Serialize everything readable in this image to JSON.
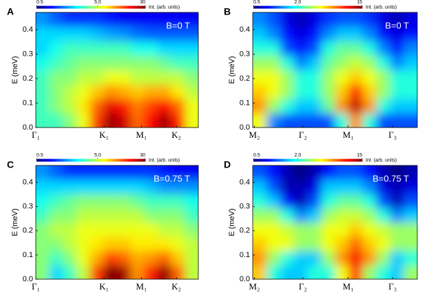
{
  "chart_data": [
    {
      "type": "heatmap",
      "panel": "A",
      "annotation": "B=0 T",
      "ylabel": "E (meV)",
      "xlim": [
        0,
        1
      ],
      "xticks": [
        {
          "value": 0,
          "label": "Γ₁"
        },
        {
          "value": 0.42,
          "label": "K₁"
        },
        {
          "value": 0.65,
          "label": "M₁"
        },
        {
          "value": 0.865,
          "label": "K₂"
        }
      ],
      "ylim": [
        0,
        0.47
      ],
      "yticks": [
        {
          "value": 0,
          "label": "0.0"
        },
        0.1,
        0.2,
        0.3,
        0.4
      ],
      "colorbar": {
        "label": "Int. (arb. units)",
        "lim": [
          0.5,
          30
        ],
        "ticks": [
          0.5,
          {
            "value": 5,
            "label": "5.0"
          },
          30
        ],
        "scale": "log",
        "colormap": "jet"
      },
      "z": [
        [
          3,
          3,
          4,
          6,
          14,
          26,
          22,
          12,
          18,
          26,
          16,
          6
        ],
        [
          3,
          4,
          5,
          7,
          12,
          20,
          16,
          11,
          14,
          18,
          12,
          6
        ],
        [
          3,
          4,
          5,
          6,
          8,
          10,
          9,
          8,
          9,
          9,
          7,
          5
        ],
        [
          3,
          4,
          4,
          5,
          5,
          6,
          6,
          5,
          5,
          5,
          5,
          4
        ],
        [
          2.5,
          3,
          3.5,
          4,
          4,
          4,
          4,
          4,
          4,
          3.5,
          3,
          3
        ],
        [
          2,
          2.5,
          3,
          3,
          3,
          3,
          3,
          2.5,
          2.5,
          2,
          2,
          2
        ],
        [
          2,
          2,
          2,
          2,
          1.8,
          1.6,
          1.5,
          1.3,
          1.2,
          1.2,
          1.2,
          1.2
        ],
        [
          1.5,
          1.2,
          1,
          1,
          1,
          0.9,
          0.8,
          0.8,
          0.8,
          0.8,
          0.8,
          0.8
        ]
      ]
    },
    {
      "type": "heatmap",
      "panel": "B",
      "annotation": "B=0 T",
      "ylabel": "E (meV)",
      "xlim": [
        0,
        1
      ],
      "xticks": [
        {
          "value": 0.01,
          "label": "M₂"
        },
        {
          "value": 0.305,
          "label": "Γ₂"
        },
        {
          "value": 0.58,
          "label": "M₁"
        },
        {
          "value": 0.85,
          "label": "Γ₃"
        }
      ],
      "ylim": [
        0,
        0.47
      ],
      "yticks": [
        {
          "value": 0,
          "label": "0.0"
        },
        0.1,
        0.2,
        0.3,
        0.4
      ],
      "colorbar": {
        "label": "Int. (arb. units)",
        "lim": [
          0.5,
          15
        ],
        "ticks": [
          0.5,
          {
            "value": 2,
            "label": "2.0"
          },
          15
        ],
        "scale": "log",
        "colormap": "jet"
      },
      "z": [
        [
          4,
          1.2,
          1,
          1,
          1,
          1,
          2,
          6,
          2,
          1,
          1,
          1
        ],
        [
          6,
          3,
          2,
          1.5,
          1.5,
          2.5,
          6,
          12,
          6,
          2,
          1.5,
          1.5
        ],
        [
          5,
          4,
          3,
          2,
          2,
          3,
          5,
          9,
          5,
          3,
          2,
          2
        ],
        [
          4,
          4,
          3,
          2,
          2,
          3,
          4,
          5,
          4,
          3,
          2,
          2
        ],
        [
          3,
          3,
          2,
          1.2,
          1.5,
          2.5,
          3,
          3.5,
          3,
          2,
          1.2,
          1.5
        ],
        [
          2,
          2,
          1,
          0.8,
          1,
          2,
          2.5,
          2.5,
          2,
          1.2,
          0.8,
          1.2
        ],
        [
          1.5,
          1.2,
          0.8,
          0.7,
          0.8,
          1.2,
          1.5,
          1.5,
          1.2,
          0.8,
          0.7,
          0.8
        ],
        [
          1.2,
          1,
          0.7,
          0.6,
          0.7,
          0.9,
          1,
          1,
          0.9,
          0.7,
          0.6,
          0.7
        ]
      ]
    },
    {
      "type": "heatmap",
      "panel": "C",
      "annotation": "B=0.75 T",
      "ylabel": "E (meV)",
      "xlim": [
        0,
        1
      ],
      "xticks": [
        {
          "value": 0,
          "label": "Γ₁"
        },
        {
          "value": 0.42,
          "label": "K₁"
        },
        {
          "value": 0.65,
          "label": "M₁"
        },
        {
          "value": 0.865,
          "label": "K₂"
        }
      ],
      "ylim": [
        0,
        0.47
      ],
      "yticks": [
        {
          "value": 0,
          "label": "0.0"
        },
        0.1,
        0.2,
        0.3,
        0.4
      ],
      "colorbar": {
        "label": "Int. (arb. units)",
        "lim": [
          0.5,
          30
        ],
        "ticks": [
          0.5,
          {
            "value": 5,
            "label": "5.0"
          },
          30
        ],
        "scale": "log",
        "colormap": "jet"
      },
      "z": [
        [
          4,
          2,
          3,
          5,
          14,
          30,
          26,
          10,
          16,
          28,
          12,
          5
        ],
        [
          4,
          3,
          4,
          6,
          9,
          14,
          12,
          9,
          10,
          12,
          8,
          5
        ],
        [
          4,
          4,
          5,
          6,
          7,
          8,
          8,
          7,
          7,
          7,
          6,
          5
        ],
        [
          4,
          5,
          5,
          6,
          6,
          6,
          6,
          6,
          6,
          5,
          5,
          4
        ],
        [
          3,
          4,
          4,
          5,
          5,
          5,
          5,
          5,
          4,
          4,
          4,
          3
        ],
        [
          2.5,
          3,
          3.5,
          4,
          4,
          4,
          4,
          3.5,
          3,
          3,
          3,
          2.5
        ],
        [
          2,
          2,
          2,
          2,
          2,
          2,
          2,
          2,
          1.8,
          1.5,
          1.5,
          1.5
        ],
        [
          1.5,
          1.2,
          1,
          1,
          1,
          1,
          1,
          1,
          1,
          0.9,
          0.8,
          0.8
        ]
      ]
    },
    {
      "type": "heatmap",
      "panel": "D",
      "annotation": "B=0.75 T",
      "ylabel": "E (meV)",
      "xlim": [
        0,
        1
      ],
      "xticks": [
        {
          "value": 0.01,
          "label": "M₂"
        },
        {
          "value": 0.305,
          "label": "Γ₂"
        },
        {
          "value": 0.58,
          "label": "M₁"
        },
        {
          "value": 0.85,
          "label": "Γ₃"
        }
      ],
      "ylim": [
        0,
        0.47
      ],
      "yticks": [
        {
          "value": 0,
          "label": "0.0"
        },
        0.1,
        0.2,
        0.3,
        0.4
      ],
      "colorbar": {
        "label": "Int. (arb. units)",
        "lim": [
          0.5,
          15
        ],
        "ticks": [
          0.5,
          {
            "value": 2,
            "label": "2.0"
          },
          15
        ],
        "scale": "log",
        "colormap": "jet"
      },
      "z": [
        [
          5,
          2,
          1.5,
          1.5,
          2,
          2,
          4,
          8,
          3,
          2,
          1.5,
          3
        ],
        [
          6,
          3,
          2,
          1.5,
          1.5,
          3,
          6,
          10,
          6,
          3,
          1.5,
          2
        ],
        [
          5,
          4,
          4,
          3,
          3,
          4,
          5,
          7,
          5,
          4,
          3,
          3
        ],
        [
          4,
          4,
          3.5,
          3,
          3,
          4,
          4,
          5,
          4,
          3.5,
          3,
          3
        ],
        [
          3,
          3,
          2,
          1.2,
          1.5,
          3,
          3.5,
          3.5,
          3,
          2,
          1.2,
          1.5
        ],
        [
          2,
          1.5,
          0.8,
          0.6,
          1,
          2,
          2.5,
          2.5,
          2,
          1,
          0.6,
          1
        ],
        [
          1.5,
          1,
          0.6,
          0.6,
          0.7,
          1.5,
          1.5,
          1.5,
          1.2,
          0.7,
          0.6,
          0.7
        ],
        [
          1,
          0.8,
          0.6,
          0.5,
          0.6,
          0.8,
          1,
          1,
          0.8,
          0.6,
          0.5,
          0.6
        ]
      ]
    }
  ]
}
